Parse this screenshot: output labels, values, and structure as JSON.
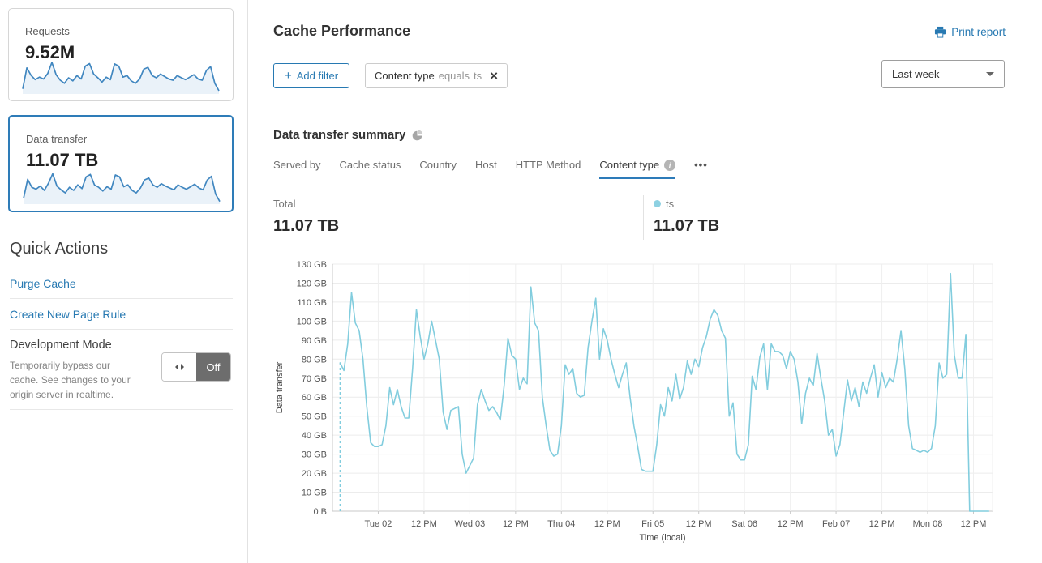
{
  "colors": {
    "accent": "#2779b2",
    "chart_line": "#82cdde",
    "legend_dot": "#8ed1e2",
    "sparkline_line": "#4187c0",
    "sparkline_fill": "#eaf2f9",
    "active_tab_underline": "#2d7bb9",
    "toggle_off_bg": "#6d6d6d"
  },
  "icons": {
    "info": "i",
    "more": "•••",
    "close": "×",
    "plus": "+"
  },
  "sidebar": {
    "cards": [
      {
        "label": "Requests",
        "value": "9.52M",
        "selected": false,
        "sparkline": [
          14,
          82,
          58,
          44,
          52,
          46,
          64,
          100,
          60,
          42,
          32,
          50,
          40,
          57,
          46,
          88,
          96,
          62,
          50,
          36,
          52,
          44,
          95,
          88,
          52,
          57,
          40,
          32,
          46,
          78,
          84,
          57,
          50,
          62,
          54,
          46,
          42,
          57,
          50,
          44,
          52,
          60,
          46,
          42,
          74,
          86,
          32,
          8
        ]
      },
      {
        "label": "Data transfer",
        "value": "11.07 TB",
        "selected": true,
        "sparkline": [
          16,
          78,
          52,
          46,
          56,
          42,
          66,
          96,
          56,
          44,
          34,
          52,
          42,
          60,
          48,
          86,
          94,
          60,
          52,
          40,
          54,
          46,
          92,
          86,
          54,
          60,
          42,
          34,
          50,
          76,
          82,
          60,
          52,
          64,
          56,
          50,
          44,
          60,
          52,
          46,
          54,
          62,
          50,
          44,
          76,
          88,
          30,
          6
        ]
      }
    ],
    "quick_actions": {
      "title": "Quick Actions",
      "links": [
        "Purge Cache",
        "Create New Page Rule"
      ],
      "dev_mode": {
        "title": "Development Mode",
        "description": "Temporarily bypass our cache. See changes to your origin server in realtime.",
        "toggle_label": "Off"
      }
    }
  },
  "header": {
    "title": "Cache Performance",
    "print_label": "Print report"
  },
  "filters": {
    "add_label": "Add filter",
    "chip": {
      "field": "Content type",
      "operator": "equals",
      "value": "ts"
    },
    "range_selected": "Last week"
  },
  "summary": {
    "title": "Data transfer summary",
    "tabs": [
      {
        "label": "Served by"
      },
      {
        "label": "Cache status"
      },
      {
        "label": "Country"
      },
      {
        "label": "Host"
      },
      {
        "label": "HTTP Method"
      },
      {
        "label": "Content type",
        "active": true,
        "has_info": true
      }
    ],
    "stats": [
      {
        "label": "Total",
        "value": "11.07 TB"
      },
      {
        "label": "ts",
        "value": "11.07 TB",
        "dot": true
      }
    ]
  },
  "chart_data": {
    "type": "line",
    "title": "Data transfer summary",
    "xlabel": "Time (local)",
    "ylabel": "Data transfer",
    "ylim_gb": [
      0,
      130
    ],
    "y_tick_labels": [
      "0 B",
      "10 GB",
      "20 GB",
      "30 GB",
      "40 GB",
      "50 GB",
      "60 GB",
      "70 GB",
      "80 GB",
      "90 GB",
      "100 GB",
      "110 GB",
      "120 GB",
      "130 GB"
    ],
    "x_domain_hours": [
      0,
      173
    ],
    "x_tick_hours": [
      12,
      24,
      36,
      48,
      60,
      72,
      84,
      96,
      108,
      120,
      132,
      144,
      156,
      168
    ],
    "x_tick_labels": [
      "Tue 02",
      "12 PM",
      "Wed 03",
      "12 PM",
      "Thu 04",
      "12 PM",
      "Fri 05",
      "12 PM",
      "Sat 06",
      "12 PM",
      "Feb 07",
      "12 PM",
      "Mon 08",
      "12 PM"
    ],
    "grid": true,
    "start_marker_dashed": true,
    "series": [
      {
        "name": "ts",
        "unit": "GB",
        "x_start_hour": 2,
        "x_step_hours": 1,
        "values": [
          78,
          74,
          88,
          115,
          99,
          95,
          80,
          55,
          36,
          34,
          34,
          35,
          45,
          65,
          56,
          64,
          55,
          49,
          49,
          75,
          106,
          92,
          80,
          88,
          100,
          90,
          80,
          52,
          43,
          53,
          54,
          55,
          30,
          20,
          24,
          28,
          56,
          64,
          58,
          53,
          55,
          52,
          48,
          66,
          91,
          82,
          80,
          64,
          70,
          67,
          118,
          99,
          95,
          60,
          45,
          32,
          29,
          30,
          45,
          77,
          72,
          75,
          62,
          60,
          61,
          86,
          100,
          112,
          80,
          96,
          90,
          80,
          72,
          65,
          72,
          78,
          60,
          45,
          34,
          22,
          21,
          21,
          21,
          35,
          56,
          50,
          65,
          58,
          72,
          59,
          65,
          79,
          72,
          80,
          76,
          86,
          92,
          101,
          106,
          103,
          95,
          91,
          50,
          57,
          30,
          27,
          27,
          35,
          71,
          64,
          81,
          88,
          64,
          88,
          84,
          84,
          82,
          75,
          84,
          80,
          68,
          46,
          62,
          70,
          66,
          83,
          70,
          58,
          40,
          43,
          29,
          35,
          52,
          69,
          58,
          65,
          55,
          68,
          62,
          70,
          77,
          60,
          73,
          65,
          70,
          68,
          80,
          95,
          75,
          45,
          33,
          32,
          31,
          32,
          31,
          33,
          45,
          78,
          70,
          72,
          125,
          82,
          70,
          70,
          93,
          0,
          0,
          0,
          0,
          0,
          0
        ]
      }
    ]
  }
}
